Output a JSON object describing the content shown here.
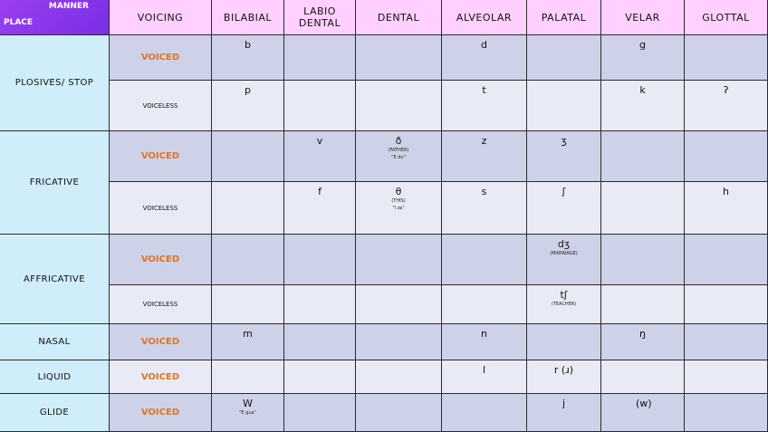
{
  "header": {
    "manner": "MANNER",
    "place": "PLACE",
    "voicing": "VOICING",
    "bilabial": "BILABIAL",
    "labiodental_1": "LABIO",
    "labiodental_2": "DENTAL",
    "dental": "DENTAL",
    "alveolar": "ALVEOLAR",
    "palatal": "PALATAL",
    "velar": "VELAR",
    "glottal": "GLOTTAL"
  },
  "rows": {
    "plosives": "PLOSIVES/ STOP",
    "fricative": "FRICATIVE",
    "affricative": "AFFRICATIVE",
    "nasal": "NASAL",
    "liquid": "LIQUID",
    "glide": "GLIDE"
  },
  "voicing": {
    "voiced": "VOICED",
    "voiceless": "VOICELESS"
  },
  "cells": {
    "plosive_voiced_bilabial": "b",
    "plosive_voiced_alveolar": "d",
    "plosive_voiced_velar": "g",
    "plosive_voiceless_bilabial": "p",
    "plosive_voiceless_alveolar": "t",
    "plosive_voiceless_velar": "k",
    "plosive_voiceless_glottal": "ʔ",
    "fric_voiced_labiodental": "v",
    "fric_voiced_dental": "ð",
    "fric_voiced_dental_note1": "(FATHER)",
    "fric_voiced_dental_note2": "\"E du\"",
    "fric_voiced_alveolar": "z",
    "fric_voiced_palatal": "ʒ",
    "fric_voiceless_labiodental": "f",
    "fric_voiceless_dental": "θ",
    "fric_voiceless_dental_note1": "(THIS)",
    "fric_voiceless_dental_note2": "\"I za\"",
    "fric_voiceless_alveolar": "s",
    "fric_voiceless_palatal": "ʃ",
    "fric_voiceless_glottal": "h",
    "affr_voiced_palatal": "dʒ",
    "affr_voiced_palatal_note": "(MARRIAGE)",
    "affr_voiceless_palatal": "tʃ",
    "affr_voiceless_palatal_note": "(TEACHER)",
    "nasal_bilabial": "m",
    "nasal_alveolar": "n",
    "nasal_velar": "ŋ",
    "liquid_alveolar": "l",
    "liquid_palatal": "r (ɹ)",
    "glide_bilabial": "W",
    "glide_bilabial_note": "\"E gua\"",
    "glide_palatal": "j",
    "glide_velar": "(w)"
  }
}
